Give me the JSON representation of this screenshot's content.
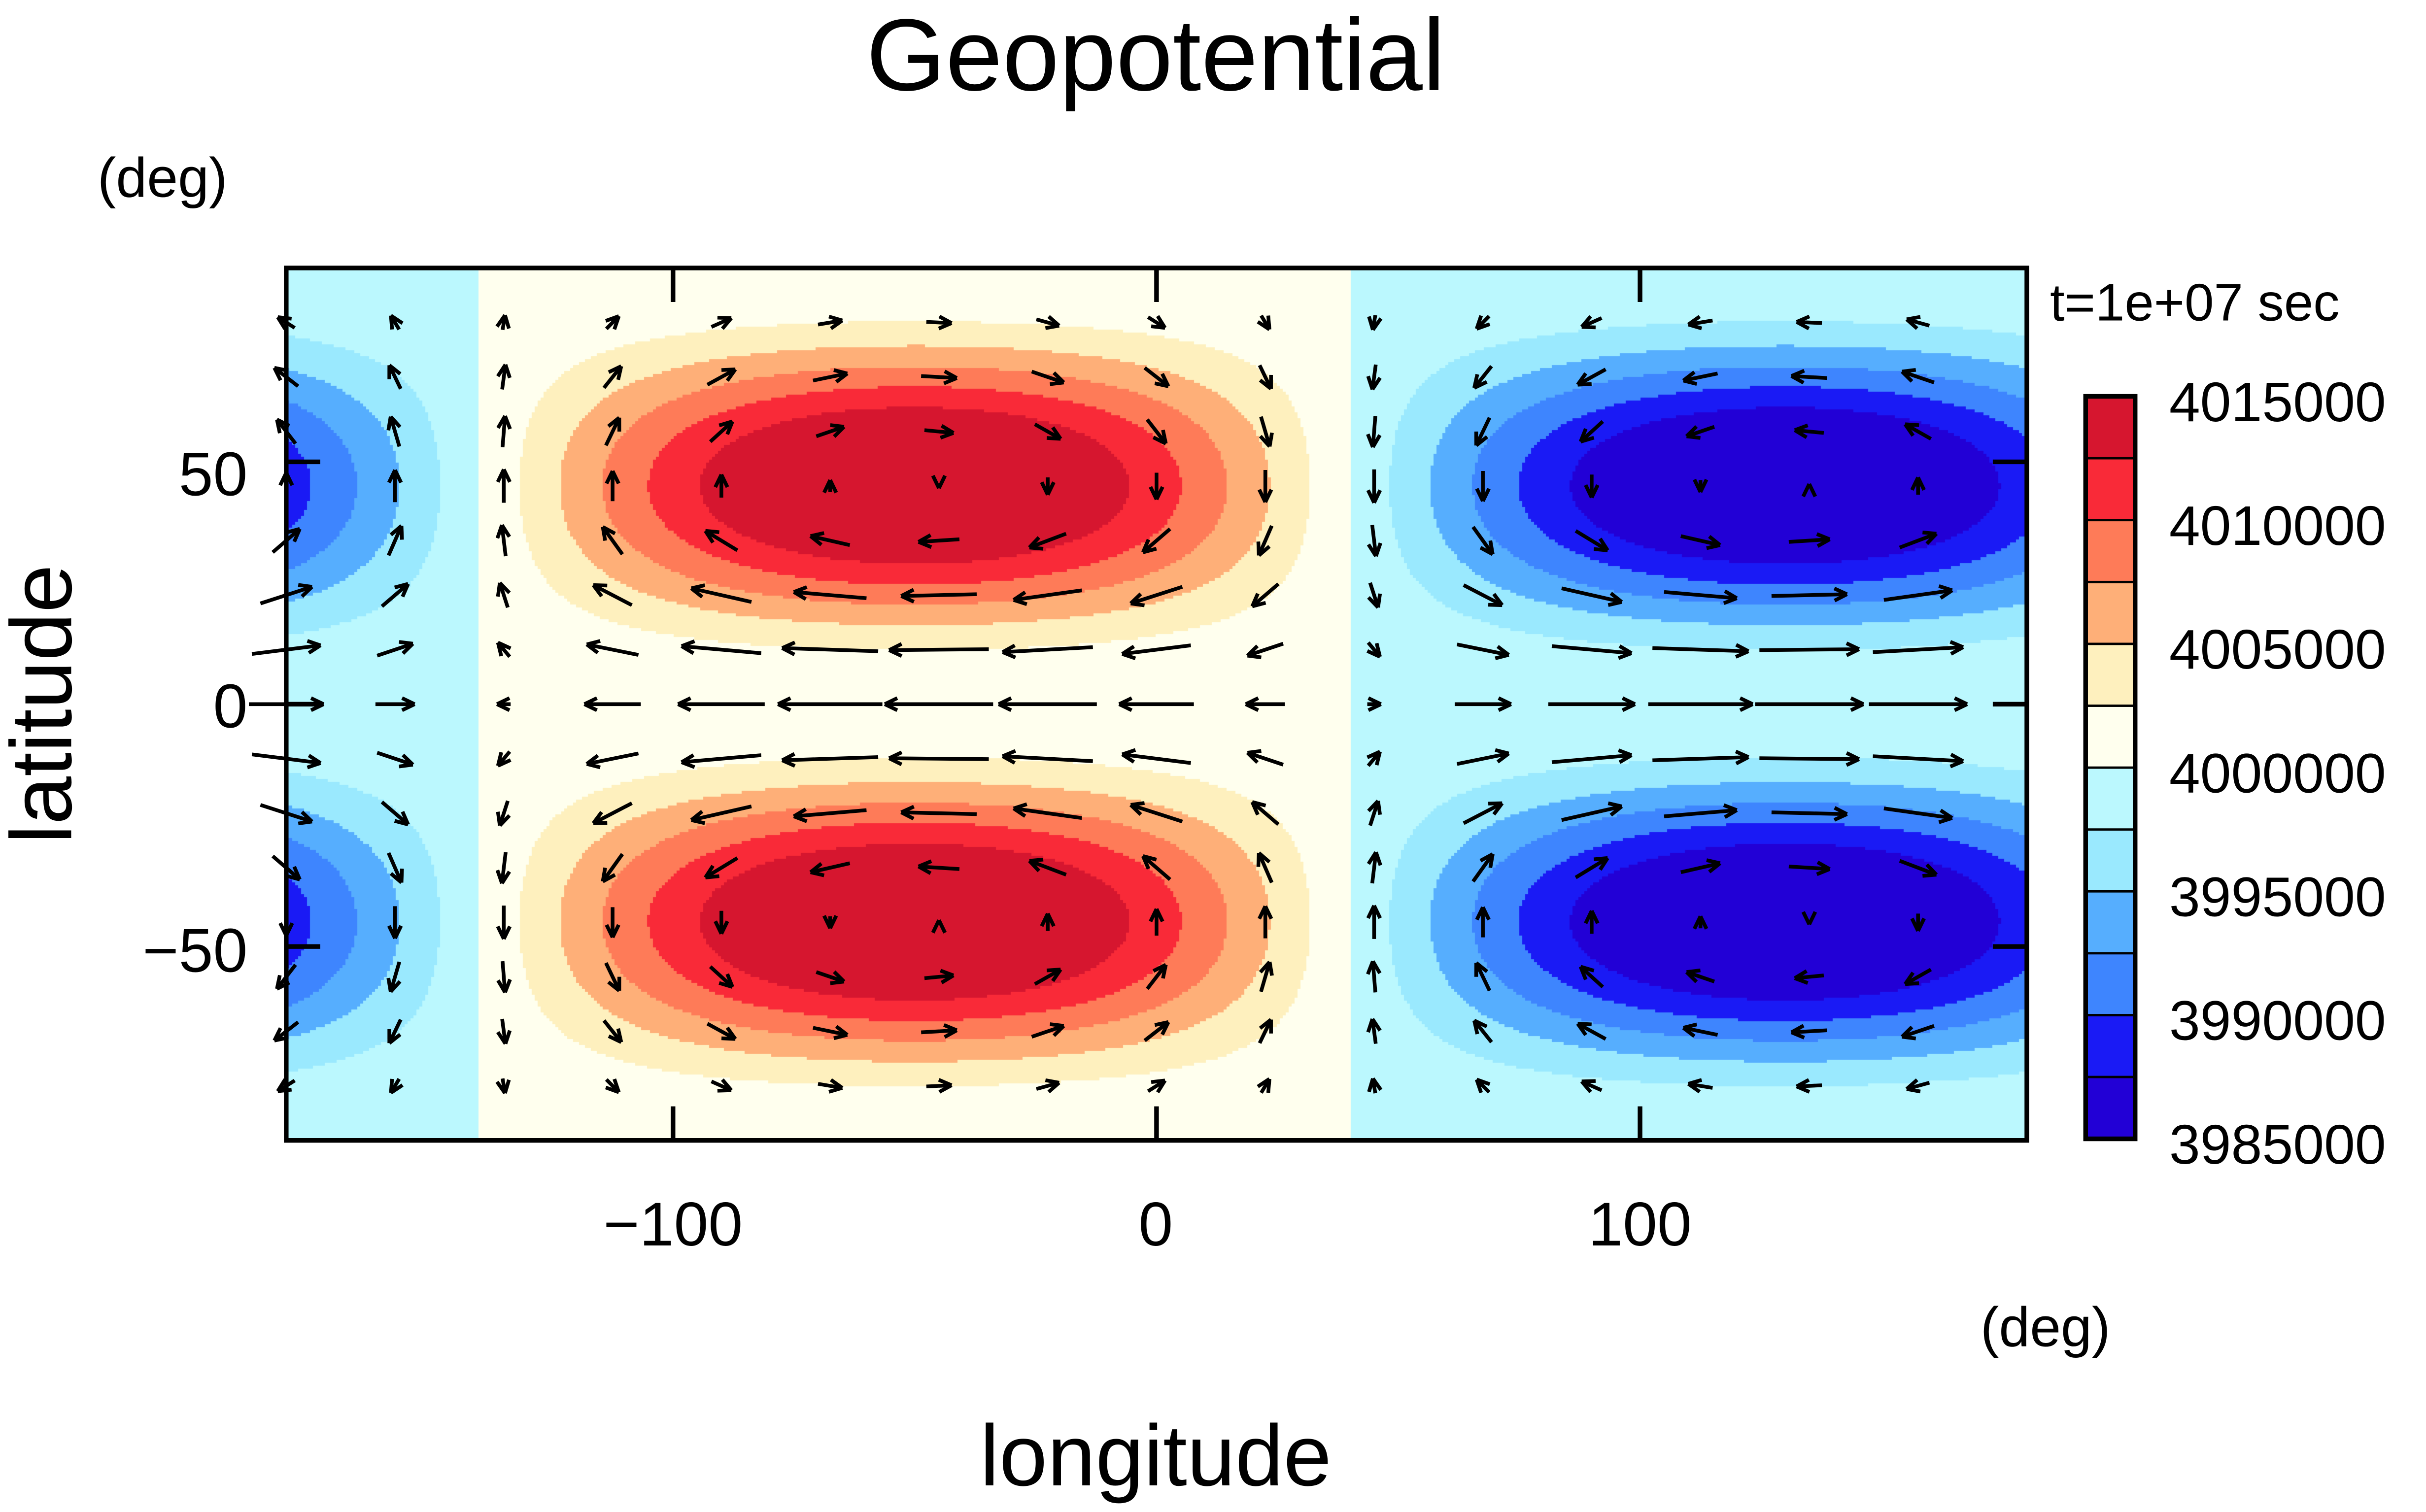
{
  "chart_data": {
    "type": "heatmap",
    "title": "Geopotential",
    "xlabel": "longitude",
    "ylabel": "latitude",
    "xunit": "(deg)",
    "yunit": "(deg)",
    "time_label": "t=1e+07 sec",
    "xlim": [
      -180,
      180
    ],
    "ylim": [
      -90,
      90
    ],
    "xticks": [
      -100,
      0,
      100
    ],
    "xtick_labels": [
      "−100",
      "0",
      "100"
    ],
    "yticks": [
      -50,
      0,
      50
    ],
    "ytick_labels": [
      "−50",
      "0",
      "50"
    ],
    "colorbar": {
      "levels": [
        3985000,
        3987500,
        3990000,
        3992500,
        3995000,
        3997500,
        4000000,
        4002500,
        4005000,
        4007500,
        4010000,
        4012500,
        4015000
      ],
      "colors": [
        "#2200D6",
        "#1A1AF5",
        "#3E85FE",
        "#56AEFE",
        "#9AE9FE",
        "#BBF8FE",
        "#FFFFEE",
        "#FEF0BE",
        "#FEAF78",
        "#FE7B58",
        "#F92A38",
        "#D6162F"
      ],
      "tick_values": [
        4015000,
        4010000,
        4005000,
        4000000,
        3995000,
        3990000,
        3985000
      ],
      "tick_labels": [
        "4015000",
        "4010000",
        "4005000",
        "4000000",
        "3995000",
        "3990000",
        "3985000"
      ]
    },
    "field": {
      "mean": 4000000,
      "amplitude": 17500,
      "high_center_lon": -50,
      "high_center_lat": [
        50,
        -50
      ],
      "low_center_lon": 130,
      "low_center_lat": [
        50,
        -50
      ]
    },
    "vectors": {
      "lon_start": -180,
      "lon_step": 22.5,
      "lon_count": 16,
      "lat_start": -90,
      "lat_step": 11.25,
      "lat_count": 16
    }
  }
}
